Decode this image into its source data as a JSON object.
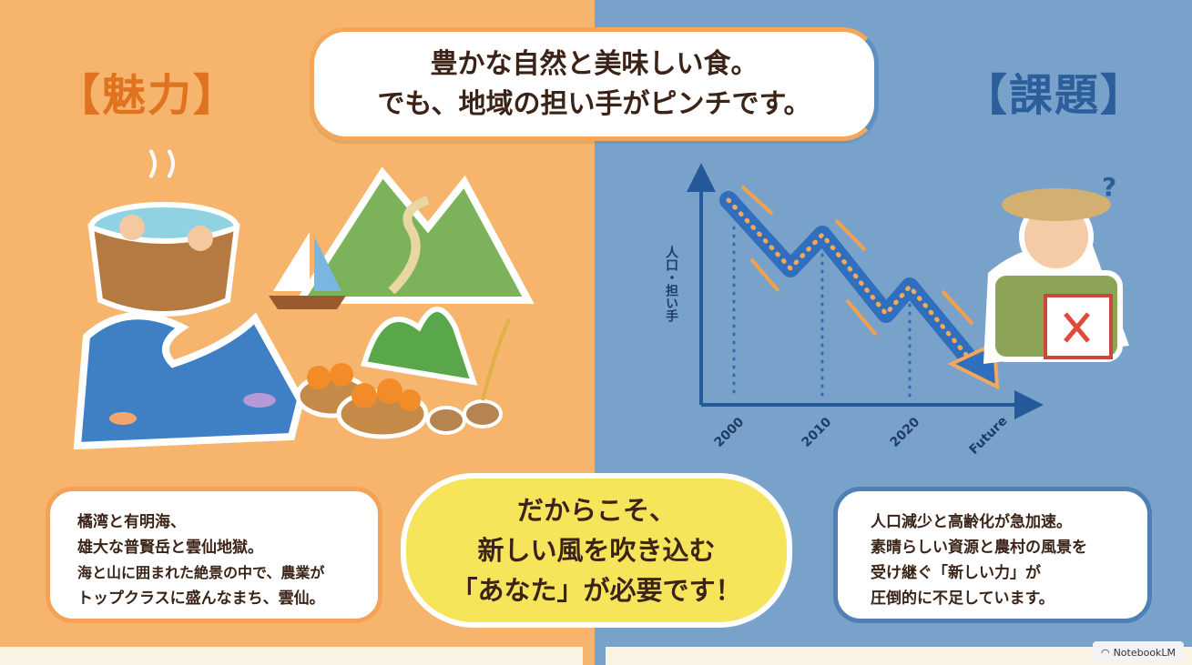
{
  "title": {
    "line1": "豊かな自然と美味しい食。",
    "line2": "でも、地域の担い手がピンチです。"
  },
  "left": {
    "label": "【魅力】",
    "color": "#e0731f",
    "bubble": [
      "橘湾と有明海、",
      "雄大な普賢岳と雲仙地獄。",
      "海と山に囲まれた絶景の中で、農業が",
      "トップクラスに盛んなまち、雲仙。"
    ]
  },
  "right": {
    "label": "【課題】",
    "color": "#2b5e9a",
    "bubble": [
      "人口減少と高齢化が急加速。",
      "素晴らしい資源と農村の風景を",
      "受け継ぐ「新しい力」が",
      "圧倒的に不足しています。"
    ]
  },
  "center": {
    "lines": [
      "だからこそ、",
      "新しい風を吹き込む",
      "「あなた」が必要です！"
    ]
  },
  "chart_data": {
    "type": "line",
    "ylabel": "人口・担い手",
    "categories": [
      "2000",
      "2010",
      "2020",
      "Future"
    ],
    "trend": "decreasing"
  },
  "badge": {
    "label": "NotebookLM"
  }
}
